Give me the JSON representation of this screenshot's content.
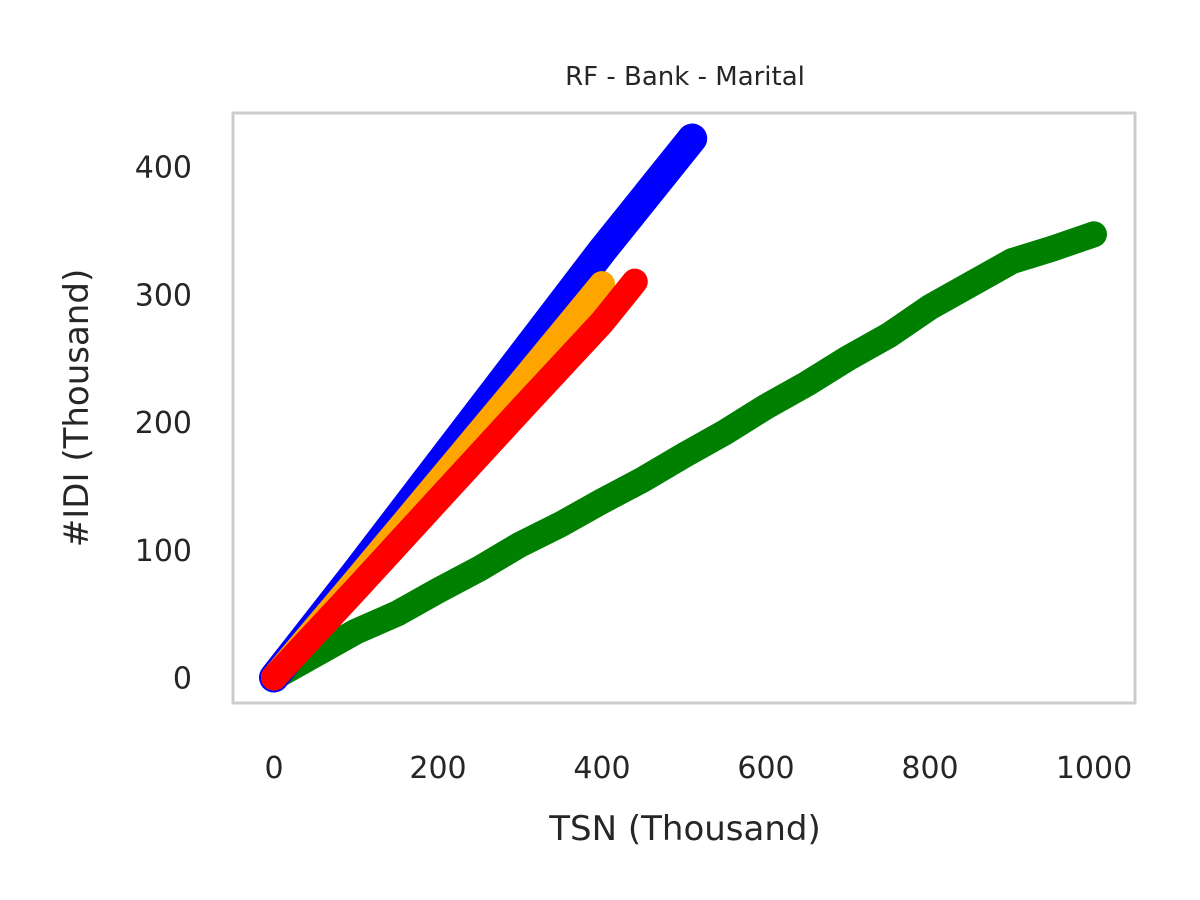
{
  "chart_data": {
    "type": "line",
    "title": "RF - Bank - Marital",
    "xlabel": "TSN (Thousand)",
    "ylabel": "#IDI (Thousand)",
    "xlim": [
      -50,
      1050
    ],
    "ylim": [
      -20,
      442
    ],
    "xticks": [
      0,
      200,
      400,
      600,
      800,
      1000
    ],
    "yticks": [
      0,
      100,
      200,
      300,
      400
    ],
    "grid": false,
    "legend": "none",
    "series": [
      {
        "color": "#008000",
        "points": [
          [
            0,
            0
          ],
          [
            50,
            18
          ],
          [
            100,
            36
          ],
          [
            150,
            50
          ],
          [
            200,
            68
          ],
          [
            250,
            85
          ],
          [
            300,
            104
          ],
          [
            350,
            120
          ],
          [
            400,
            138
          ],
          [
            450,
            155
          ],
          [
            500,
            174
          ],
          [
            550,
            192
          ],
          [
            600,
            212
          ],
          [
            650,
            230
          ],
          [
            700,
            250
          ],
          [
            750,
            268
          ],
          [
            800,
            290
          ],
          [
            850,
            308
          ],
          [
            900,
            326
          ],
          [
            950,
            336
          ],
          [
            1000,
            347
          ]
        ]
      },
      {
        "color": "#0000ff",
        "points": [
          [
            0,
            0
          ],
          [
            100,
            82
          ],
          [
            200,
            166
          ],
          [
            300,
            250
          ],
          [
            400,
            334
          ],
          [
            510,
            422
          ]
        ]
      },
      {
        "color": "#ffa500",
        "points": [
          [
            0,
            0
          ],
          [
            100,
            76
          ],
          [
            200,
            153
          ],
          [
            300,
            230
          ],
          [
            400,
            308
          ]
        ]
      },
      {
        "color": "#ff0000",
        "points": [
          [
            0,
            0
          ],
          [
            100,
            69
          ],
          [
            200,
            139
          ],
          [
            300,
            209
          ],
          [
            400,
            278
          ],
          [
            440,
            310
          ]
        ]
      }
    ]
  }
}
